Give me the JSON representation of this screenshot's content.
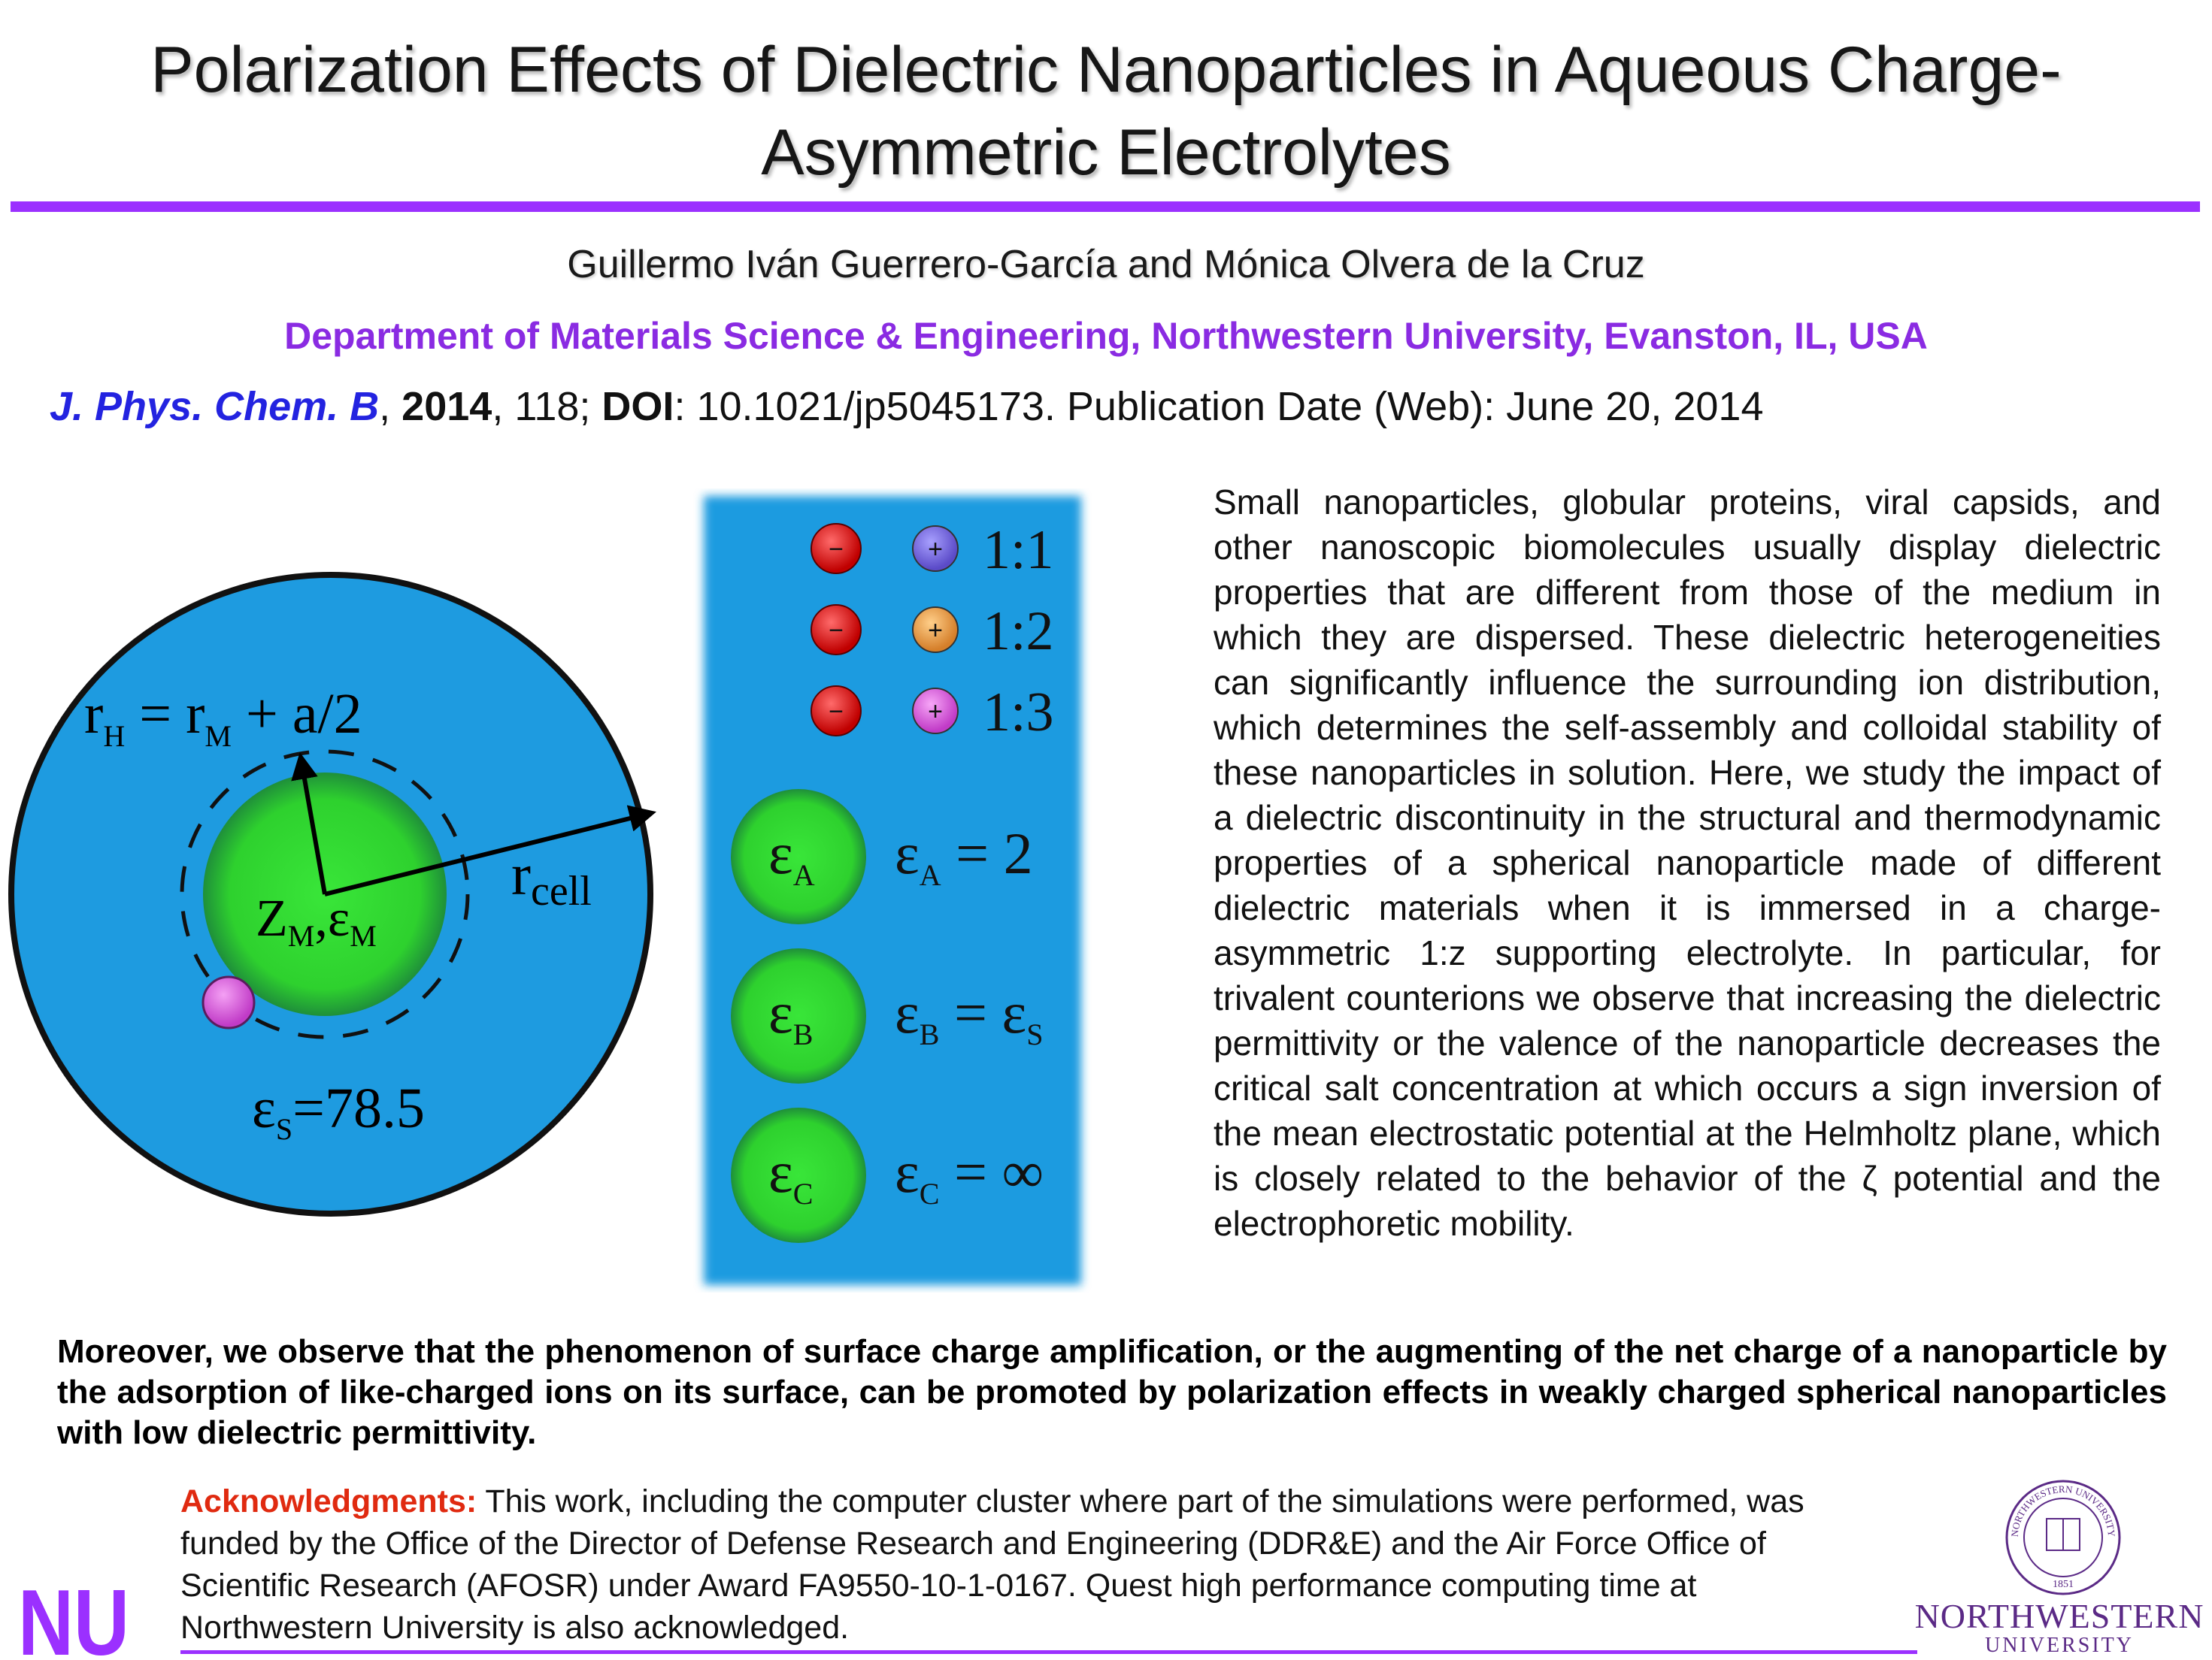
{
  "header": {
    "title_line1": "Polarization Effects of Dielectric Nanoparticles in Aqueous Charge-",
    "title_line2": "Asymmetric Electrolytes",
    "authors": "Guillermo Iván Guerrero-García and Mónica Olvera de la Cruz",
    "department": "Department of Materials Science & Engineering, Northwestern University, Evanston, IL, USA",
    "citation": {
      "journal": "J. Phys. Chem. B",
      "year": "2014",
      "volume": ", 118; ",
      "doi_label": "DOI",
      "doi_rest": ": 10.1021/jp5045173.  Publication Date (Web): June 20, 2014"
    }
  },
  "figure": {
    "cell_diagram": {
      "rh_label": "r",
      "rh_sub": "H",
      "rh_eq": " = r",
      "rm_sub": "M",
      "rh_tail": " + a/2",
      "rcell_label": "r",
      "rcell_sub": "cell",
      "zm_label": "Z",
      "zm_sub": "M",
      "eps_m_label": ",ε",
      "eps_m_sub": "M",
      "eps_s_label": "ε",
      "eps_s_sub": "S",
      "eps_s_value": "=78.5"
    },
    "ions": [
      {
        "minus": "−",
        "plus": "+",
        "ratio": "1:1",
        "plus_color": "#6a5acd"
      },
      {
        "minus": "−",
        "plus": "+",
        "ratio": "1:2",
        "plus_color": "#e0913a"
      },
      {
        "minus": "−",
        "plus": "+",
        "ratio": "1:3",
        "plus_color": "#d24fd8"
      }
    ],
    "particles": [
      {
        "sym": "ε",
        "sub": "A",
        "eq_sub": "A",
        "eq_rhs": " = 2",
        "eq_rhs_sub": ""
      },
      {
        "sym": "ε",
        "sub": "B",
        "eq_sub": "B",
        "eq_rhs": " = ε",
        "eq_rhs_sub": "S"
      },
      {
        "sym": "ε",
        "sub": "C",
        "eq_sub": "C",
        "eq_rhs": " = ∞",
        "eq_rhs_sub": ""
      }
    ],
    "colors": {
      "water": "#1e9be0",
      "particle": "#2ed12e",
      "counterion": "#d24fd8",
      "anion": "#e01010"
    }
  },
  "abstract": "Small nanoparticles, globular proteins, viral capsids, and other nanoscopic biomolecules usually display dielectric properties that are different from those of the medium in which they are dispersed. These dielectric heterogeneities can significantly influence the surrounding ion distribution, which determines the self-assembly and colloidal stability of these nanoparticles in solution. Here, we study the impact of a dielectric discontinuity in the structural and thermodynamic properties of a spherical nanoparticle made of different dielectric materials when it is immersed in a charge-asymmetric 1:z supporting electrolyte. In particular, for trivalent counterions we observe that increasing the dielectric permittivity or the valence of the nanoparticle decreases the critical salt concentration at which occurs a sign inversion of the mean electrostatic potential at the Helmholtz plane, which is closely related to the behavior of the ζ potential and the electrophoretic mobility.",
  "highlight": "Moreover, we observe that the phenomenon of surface charge amplification, or the augmenting of the net charge of a nanoparticle by the adsorption of like-charged ions on its surface, can be promoted by polarization effects in weakly charged spherical nanoparticles with low dielectric permittivity.",
  "acknowledgments": {
    "label": "Acknowledgments:",
    "text": " This work, including the computer cluster where part of the simulations were performed, was funded by the Office of the Director of Defense Research and Engineering (DDR&E) and the Air Force Office of Scientific Research (AFOSR) under Award FA9550-10-1-0167.  Quest high performance computing time at Northwestern University is also acknowledged."
  },
  "logos": {
    "nu_mark": "NU",
    "seal_ring_text": "NORTHWESTERN UNIVERSITY",
    "seal_year": "1851",
    "name_line1": "NORTHWESTERN",
    "name_line2": "UNIVERSITY",
    "brand_color": "#9b30ff",
    "seal_color": "#5b2a86"
  }
}
